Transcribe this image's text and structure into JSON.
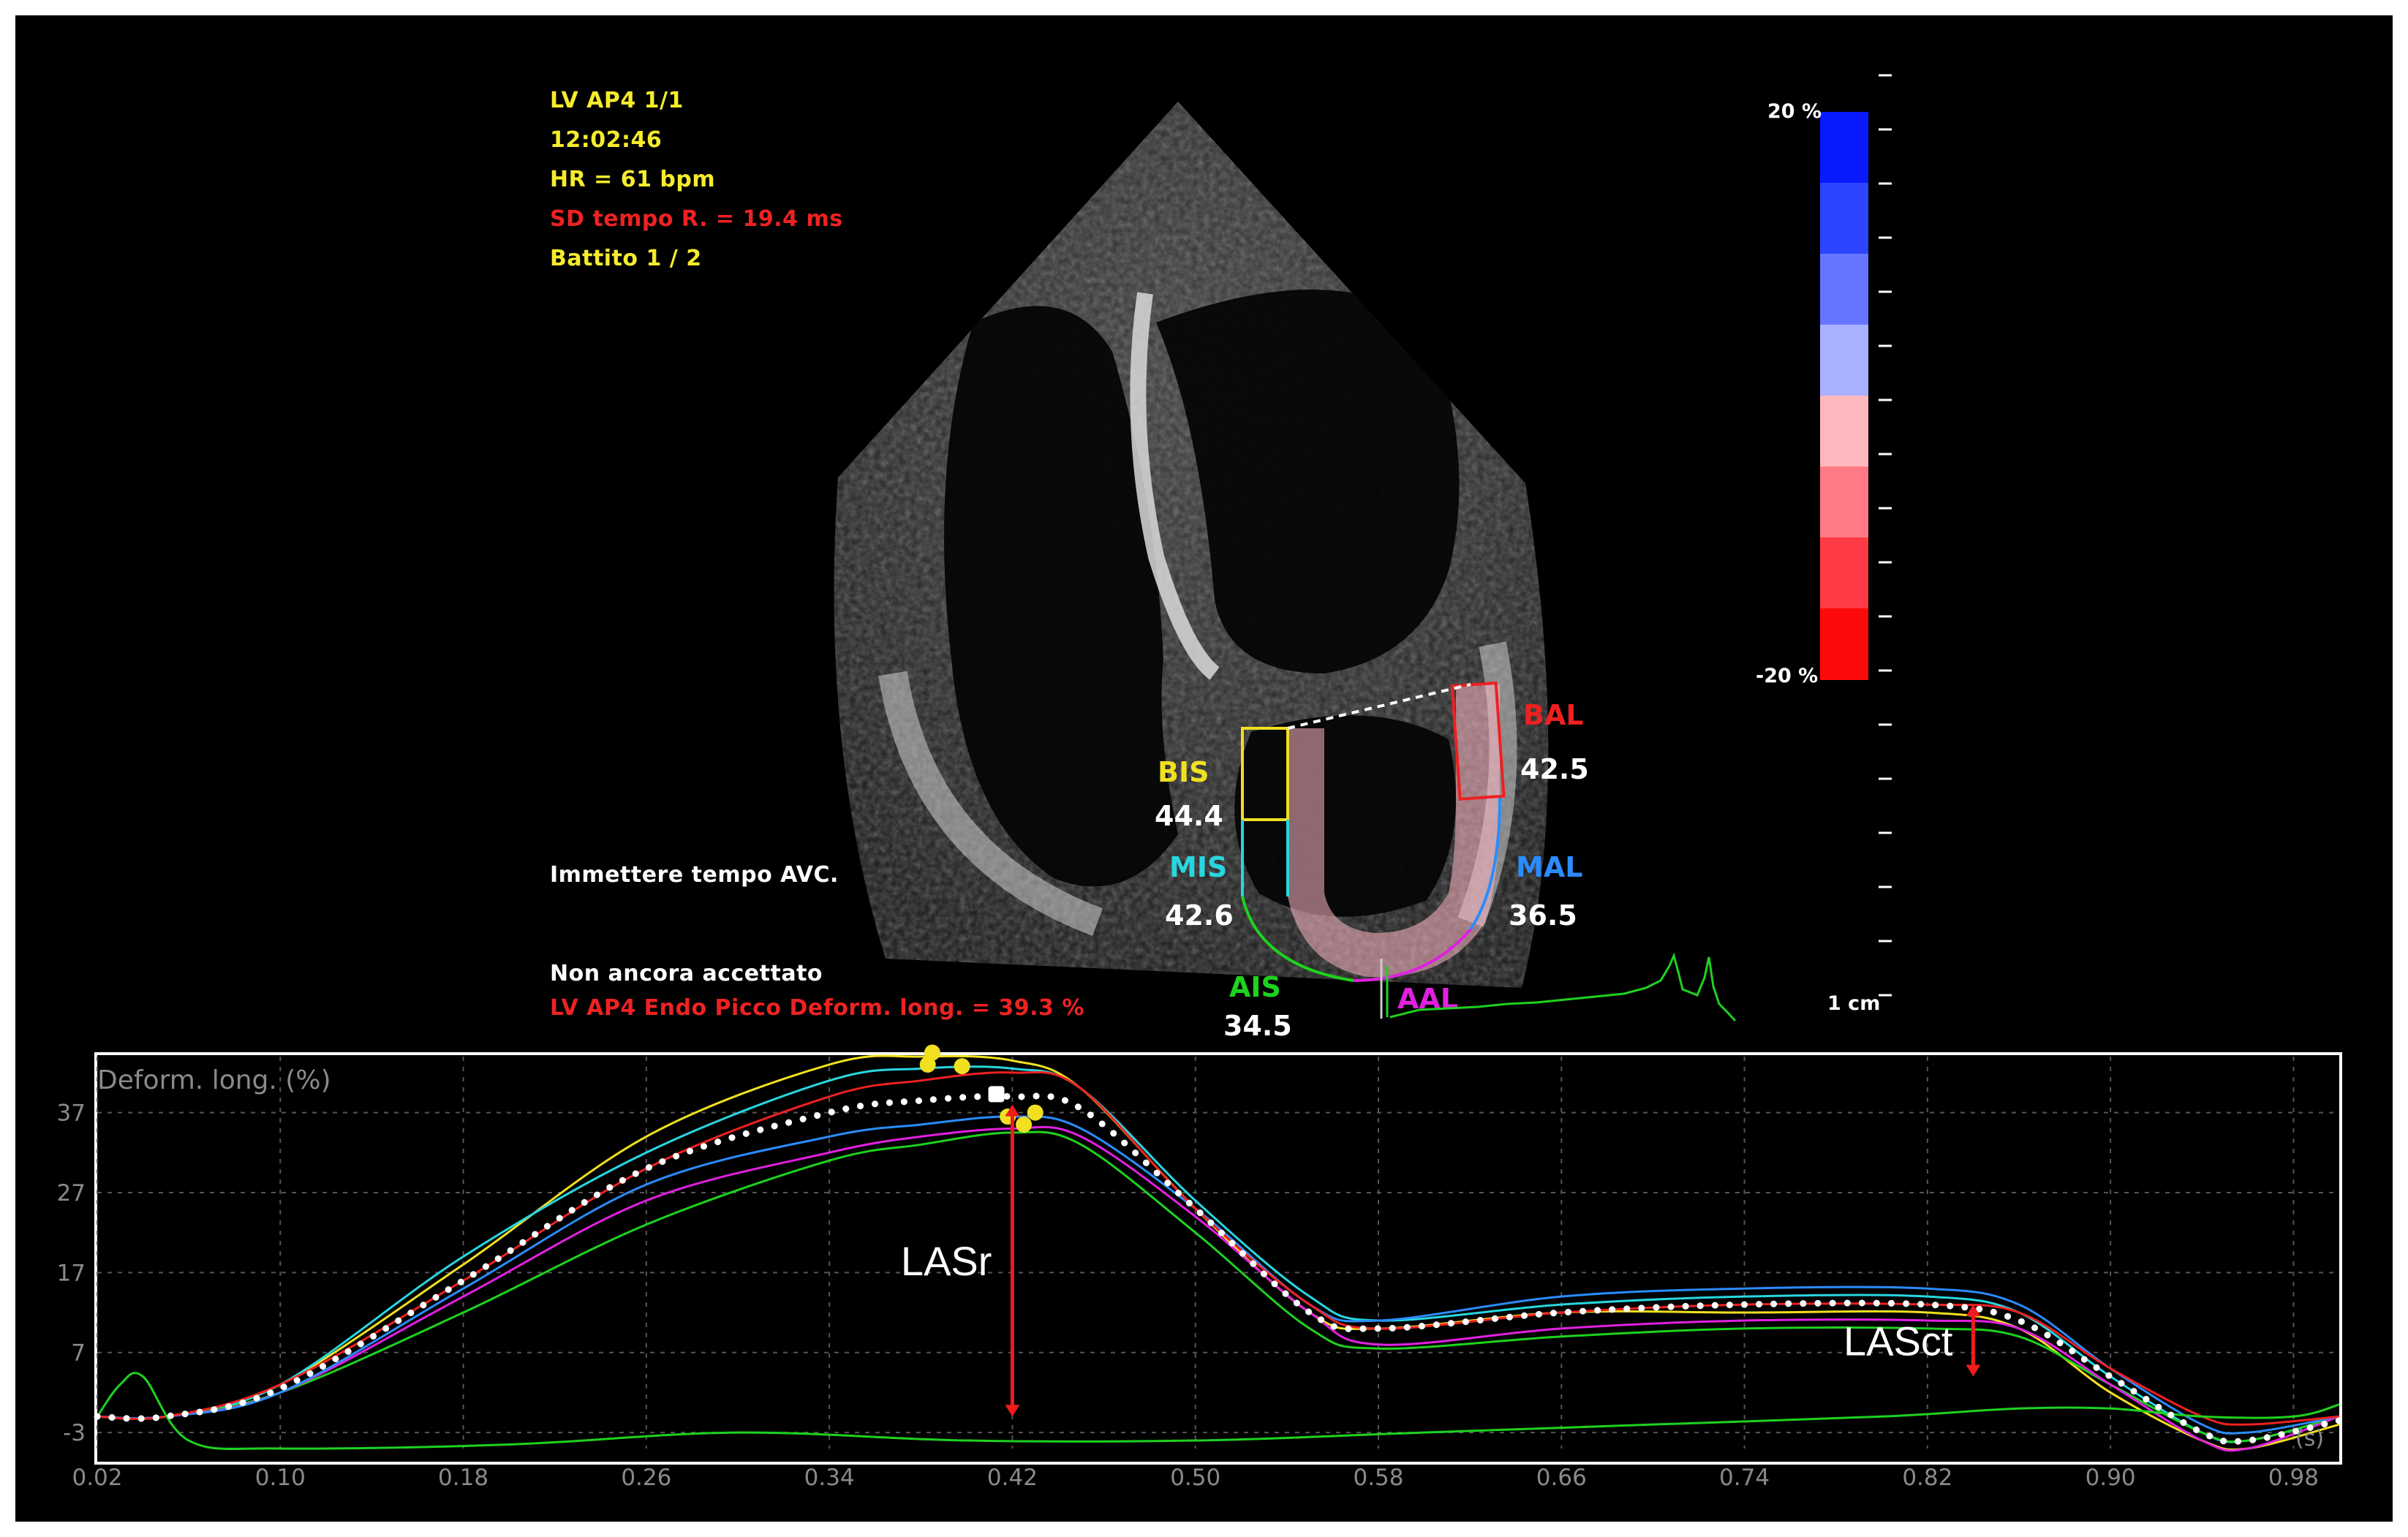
{
  "header_info": {
    "view": "LV AP4  1/1",
    "time": "12:02:46",
    "heart_rate": "HR = 61 bpm",
    "sd_time": "SD tempo R. = 19.4 ms",
    "beat": "Battito 1 / 2"
  },
  "status": {
    "avc_prompt": "Immettere tempo AVC.",
    "acceptance": "Non ancora accettato",
    "peak_strain": "LV AP4 Endo Picco Deform. long. = 39.3 %"
  },
  "color_scale": {
    "top_label": "20 %",
    "bottom_label": "-20 %",
    "distance_label": "1 cm",
    "colors": [
      "#0a1aff",
      "#2e45ff",
      "#6675ff",
      "#a9b0ff",
      "#ffb8bf",
      "#ff7a84",
      "#ff3b45",
      "#ff0a0a"
    ]
  },
  "segments": [
    {
      "name": "BIS",
      "value": "44.4",
      "color": "#f0e020"
    },
    {
      "name": "MIS",
      "value": "42.6",
      "color": "#28d6e0"
    },
    {
      "name": "AIS",
      "value": "34.5",
      "color": "#1ed21e"
    },
    {
      "name": "AAL",
      "value": "",
      "color": "#e020e0"
    },
    {
      "name": "MAL",
      "value": "36.5",
      "color": "#2a8cff"
    },
    {
      "name": "BAL",
      "value": "42.5",
      "color": "#ee2020"
    }
  ],
  "chart_data": {
    "type": "line",
    "title": "Deform. long. (%)",
    "x_unit": "(s)",
    "xlim": [
      0.02,
      1.0
    ],
    "ylim": [
      -5,
      44
    ],
    "x_ticks": [
      "0.02",
      "0.10",
      "0.18",
      "0.26",
      "0.34",
      "0.42",
      "0.50",
      "0.58",
      "0.66",
      "0.74",
      "0.82",
      "0.90",
      "0.98"
    ],
    "y_ticks": [
      "37",
      "27",
      "17",
      "7",
      "-3"
    ],
    "grid": true,
    "series": [
      {
        "segment": "BIS",
        "color": "#f0e020",
        "x": [
          0.02,
          0.05,
          0.1,
          0.18,
          0.26,
          0.34,
          0.38,
          0.42,
          0.45,
          0.5,
          0.55,
          0.58,
          0.66,
          0.74,
          0.82,
          0.86,
          0.9,
          0.94,
          0.96,
          1.0
        ],
        "y": [
          -1,
          -1,
          3,
          18,
          34,
          43,
          44,
          43.5,
          40,
          25,
          12,
          10,
          12,
          12,
          12,
          10,
          2,
          -4,
          -5,
          -2
        ]
      },
      {
        "segment": "MIS",
        "color": "#28d6e0",
        "x": [
          0.02,
          0.05,
          0.1,
          0.18,
          0.26,
          0.34,
          0.38,
          0.42,
          0.45,
          0.5,
          0.55,
          0.58,
          0.66,
          0.74,
          0.82,
          0.86,
          0.9,
          0.94,
          0.96,
          1.0
        ],
        "y": [
          -1,
          -1,
          3,
          19,
          32,
          41,
          42.5,
          42.5,
          40,
          26,
          14,
          11,
          13,
          14,
          14,
          12,
          4,
          -3,
          -4,
          -1
        ]
      },
      {
        "segment": "AIS",
        "color": "#1ed21e",
        "x": [
          0.02,
          0.05,
          0.1,
          0.18,
          0.26,
          0.34,
          0.38,
          0.42,
          0.45,
          0.5,
          0.55,
          0.58,
          0.66,
          0.74,
          0.82,
          0.86,
          0.9,
          0.94,
          0.96,
          1.0
        ],
        "y": [
          -1,
          -1,
          2,
          12,
          23,
          31,
          33,
          34.5,
          33,
          22,
          10,
          7.5,
          9,
          10,
          10,
          9,
          3,
          -3,
          -4,
          -1
        ]
      },
      {
        "segment": "AAL",
        "color": "#e020e0",
        "x": [
          0.02,
          0.05,
          0.1,
          0.18,
          0.26,
          0.34,
          0.38,
          0.42,
          0.45,
          0.5,
          0.55,
          0.58,
          0.66,
          0.74,
          0.82,
          0.86,
          0.9,
          0.94,
          0.96,
          1.0
        ],
        "y": [
          -1,
          -1,
          2,
          14,
          26,
          32,
          34,
          35,
          34,
          24,
          12,
          8,
          10,
          11,
          11,
          10,
          3,
          -4,
          -5,
          -1
        ]
      },
      {
        "segment": "MAL",
        "color": "#2a8cff",
        "x": [
          0.02,
          0.05,
          0.1,
          0.18,
          0.26,
          0.34,
          0.38,
          0.42,
          0.45,
          0.5,
          0.55,
          0.58,
          0.66,
          0.74,
          0.82,
          0.86,
          0.9,
          0.94,
          0.96,
          1.0
        ],
        "y": [
          -1,
          -1,
          2,
          15,
          28,
          34,
          35.5,
          36.5,
          35,
          25,
          13,
          11,
          14,
          15,
          15,
          13,
          5,
          -2,
          -3,
          -1
        ]
      },
      {
        "segment": "BAL",
        "color": "#ee2020",
        "x": [
          0.02,
          0.05,
          0.1,
          0.18,
          0.26,
          0.34,
          0.38,
          0.42,
          0.45,
          0.5,
          0.55,
          0.58,
          0.66,
          0.74,
          0.82,
          0.86,
          0.9,
          0.94,
          0.96,
          1.0
        ],
        "y": [
          -1,
          -1,
          3,
          16,
          30,
          39,
          41,
          42,
          40,
          25,
          13,
          10,
          12,
          13,
          13,
          12,
          5,
          -1,
          -2,
          -1
        ]
      },
      {
        "segment": "ECG",
        "color": "#1ed21e",
        "x": [
          0.02,
          0.03,
          0.04,
          0.06,
          0.1,
          0.2,
          0.3,
          0.4,
          0.5,
          0.6,
          0.7,
          0.8,
          0.86,
          0.9,
          0.94,
          0.98,
          1.0
        ],
        "y": [
          -1,
          3,
          4,
          -4,
          -5,
          -4.5,
          -3,
          -4,
          -4,
          -3,
          -2,
          -1,
          0,
          0,
          -1,
          -1,
          0.5
        ]
      }
    ],
    "average": {
      "color": "#ffffff",
      "x": [
        0.02,
        0.05,
        0.1,
        0.18,
        0.26,
        0.34,
        0.38,
        0.42,
        0.45,
        0.5,
        0.55,
        0.58,
        0.66,
        0.74,
        0.82,
        0.86,
        0.9,
        0.94,
        0.96,
        1.0
      ],
      "y": [
        -1,
        -1,
        2.5,
        16,
        30,
        37,
        38.5,
        39,
        37.5,
        25,
        12,
        10,
        12,
        13,
        13,
        11,
        4,
        -3,
        -4,
        -1.5
      ]
    },
    "peak_markers": [
      {
        "x": 0.385,
        "y": 44.5,
        "color": "#f0e020"
      },
      {
        "x": 0.383,
        "y": 43.0,
        "color": "#f0e020"
      },
      {
        "x": 0.398,
        "y": 42.8,
        "color": "#f0e020"
      },
      {
        "x": 0.43,
        "y": 37.0,
        "color": "#f0e020"
      },
      {
        "x": 0.425,
        "y": 35.5,
        "color": "#f0e020"
      },
      {
        "x": 0.418,
        "y": 36.5,
        "color": "#f0e020"
      },
      {
        "x": 0.413,
        "y": 39.3,
        "color": "#ffffff"
      }
    ],
    "annotations": [
      {
        "label": "LASr",
        "x": 0.42,
        "y_from": -1,
        "y_to": 38
      },
      {
        "label": "LASct",
        "x": 0.84,
        "y_from": 4,
        "y_to": 13
      }
    ]
  }
}
